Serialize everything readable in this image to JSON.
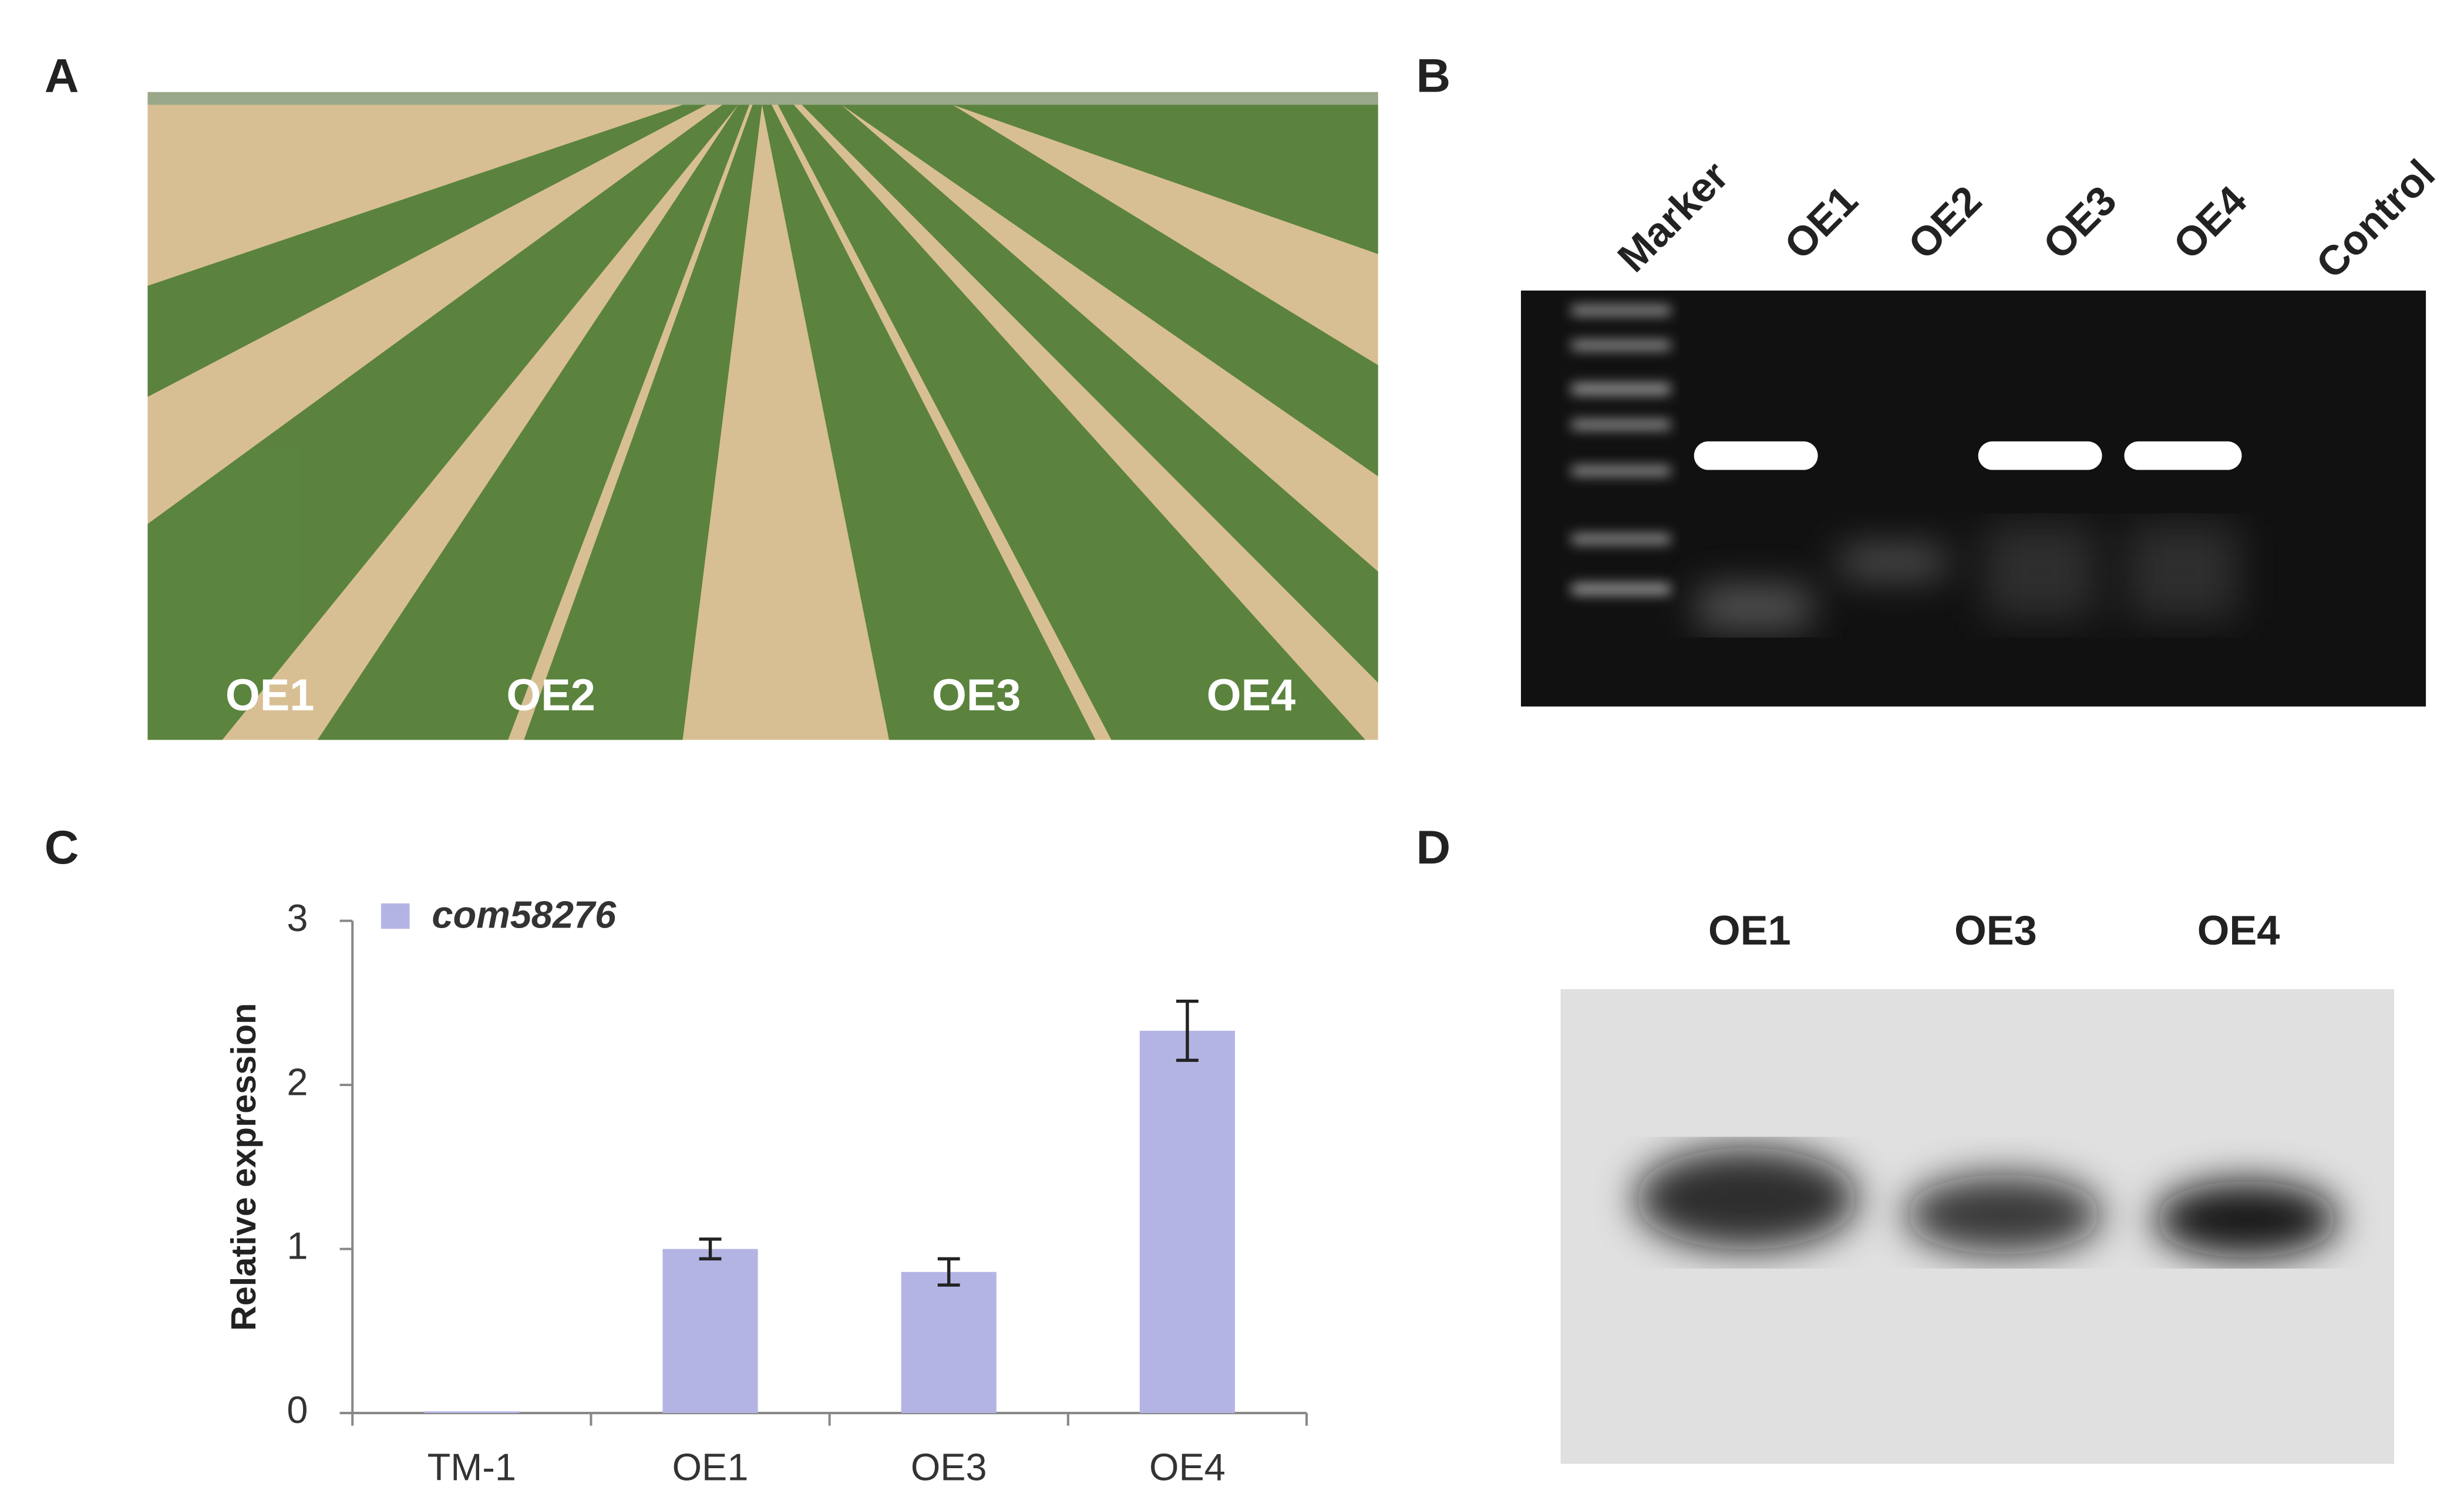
{
  "panel_labels": [
    "A",
    "B",
    "C",
    "D"
  ],
  "photo_labels": [
    "OE1",
    "OE2",
    "OE3",
    "OE4"
  ],
  "gel_lanes": [
    "Marker",
    "OE1",
    "OE2",
    "OE3",
    "OE4",
    "Control"
  ],
  "blot_lanes": [
    "OE1",
    "OE3",
    "OE4"
  ],
  "chart_data": {
    "type": "bar",
    "y_label": "Relative expression",
    "categories": [
      "TM-1",
      "OE1",
      "OE3",
      "OE4"
    ],
    "series": [
      {
        "name": "com58276",
        "color": "#b4b4e4",
        "values": [
          0.01,
          1.0,
          0.86,
          2.33
        ],
        "errors": [
          0,
          0.06,
          0.08,
          0.18
        ]
      }
    ],
    "ylim": [
      0,
      3
    ],
    "yticks": [
      0,
      1,
      2,
      3
    ]
  }
}
